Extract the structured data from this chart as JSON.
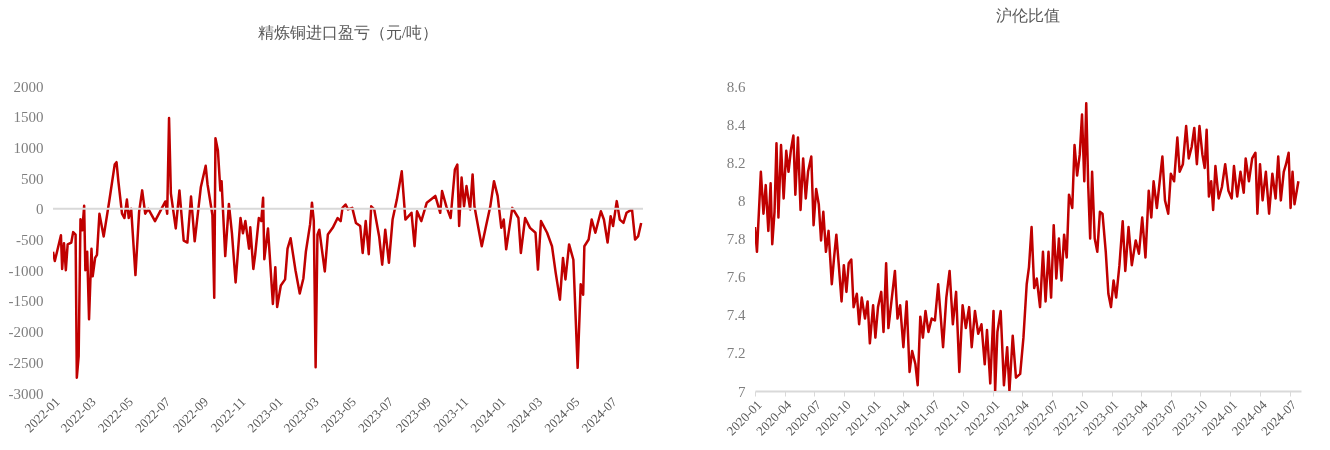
{
  "chart_data": [
    {
      "type": "line",
      "title": "精炼铜进口盈亏（元/吨）",
      "x": [
        "2022-01-01",
        "2022-01-04",
        "2022-01-14",
        "2022-01-16",
        "2022-01-19",
        "2022-01-22",
        "2022-01-25",
        "2022-01-31",
        "2022-02-03",
        "2022-02-07",
        "2022-02-09",
        "2022-02-12",
        "2022-02-15",
        "2022-02-18",
        "2022-02-21",
        "2022-02-23",
        "2022-02-26",
        "2022-03-01",
        "2022-03-05",
        "2022-03-07",
        "2022-03-11",
        "2022-03-14",
        "2022-03-18",
        "2022-03-25",
        "2022-04-03",
        "2022-04-12",
        "2022-04-15",
        "2022-04-18",
        "2022-04-24",
        "2022-04-28",
        "2022-05-02",
        "2022-05-05",
        "2022-05-09",
        "2022-05-16",
        "2022-05-22",
        "2022-05-27",
        "2022-06-01",
        "2022-06-06",
        "2022-06-17",
        "2022-06-25",
        "2022-07-04",
        "2022-07-07",
        "2022-07-10",
        "2022-07-13",
        "2022-07-21",
        "2022-07-27",
        "2022-08-03",
        "2022-08-09",
        "2022-08-15",
        "2022-08-21",
        "2022-08-31",
        "2022-09-08",
        "2022-09-11",
        "2022-09-19",
        "2022-09-22",
        "2022-09-24",
        "2022-09-28",
        "2022-10-02",
        "2022-10-04",
        "2022-10-10",
        "2022-10-16",
        "2022-10-21",
        "2022-10-27",
        "2022-11-04",
        "2022-11-08",
        "2022-11-12",
        "2022-11-18",
        "2022-11-20",
        "2022-11-25",
        "2022-11-28",
        "2022-12-04",
        "2022-12-08",
        "2022-12-11",
        "2022-12-13",
        "2022-12-19",
        "2022-12-27",
        "2022-12-31",
        "2023-01-03",
        "2023-01-09",
        "2023-01-16",
        "2023-01-20",
        "2023-01-25",
        "2023-02-02",
        "2023-02-09",
        "2023-02-15",
        "2023-02-19",
        "2023-02-26",
        "2023-03-01",
        "2023-03-04",
        "2023-03-07",
        "2023-03-10",
        "2023-03-13",
        "2023-03-22",
        "2023-03-27",
        "2023-04-04",
        "2023-04-12",
        "2023-04-17",
        "2023-04-20",
        "2023-04-25",
        "2023-04-29",
        "2023-05-06",
        "2023-05-12",
        "2023-05-19",
        "2023-05-23",
        "2023-05-28",
        "2023-06-02",
        "2023-06-06",
        "2023-06-11",
        "2023-06-19",
        "2023-06-24",
        "2023-06-29",
        "2023-07-05",
        "2023-07-11",
        "2023-07-18",
        "2023-07-26",
        "2023-08-01",
        "2023-08-11",
        "2023-08-16",
        "2023-08-20",
        "2023-08-27",
        "2023-09-05",
        "2023-09-19",
        "2023-09-27",
        "2023-09-30",
        "2023-10-07",
        "2023-10-14",
        "2023-10-21",
        "2023-10-25",
        "2023-10-28",
        "2023-11-01",
        "2023-11-05",
        "2023-11-09",
        "2023-11-15",
        "2023-11-19",
        "2023-11-22",
        "2023-11-29",
        "2023-12-04",
        "2023-12-11",
        "2023-12-18",
        "2023-12-24",
        "2023-12-30",
        "2024-01-05",
        "2024-01-09",
        "2024-01-13",
        "2024-01-23",
        "2024-02-02",
        "2024-02-06",
        "2024-02-13",
        "2024-02-21",
        "2024-03-01",
        "2024-03-05",
        "2024-03-10",
        "2024-03-20",
        "2024-03-28",
        "2024-04-03",
        "2024-04-10",
        "2024-04-15",
        "2024-04-19",
        "2024-04-25",
        "2024-05-02",
        "2024-05-09",
        "2024-05-14",
        "2024-05-18",
        "2024-05-20",
        "2024-05-27",
        "2024-06-01",
        "2024-06-07",
        "2024-06-16",
        "2024-06-21",
        "2024-06-27",
        "2024-07-02",
        "2024-07-06",
        "2024-07-12",
        "2024-07-17",
        "2024-07-23",
        "2024-07-28",
        "2024-08-06",
        "2024-08-11",
        "2024-08-16",
        "2024-08-21"
      ],
      "series": [
        {
          "color": "#c00000",
          "values": [
            -700,
            -850,
            -430,
            -980,
            -560,
            -1000,
            -580,
            -550,
            -380,
            -420,
            -2750,
            -2400,
            -170,
            -350,
            50,
            -1000,
            -700,
            -1800,
            -650,
            -1100,
            -800,
            -750,
            -80,
            -450,
            120,
            720,
            760,
            450,
            -80,
            -150,
            150,
            -150,
            0,
            -1080,
            -50,
            300,
            -80,
            0,
            -200,
            -50,
            120,
            -80,
            1480,
            250,
            -320,
            300,
            -520,
            -550,
            200,
            -530,
            350,
            700,
            400,
            -100,
            -1450,
            1150,
            950,
            300,
            450,
            -770,
            80,
            -400,
            -1200,
            -150,
            -400,
            -200,
            -650,
            -300,
            -980,
            -750,
            -150,
            -200,
            180,
            -820,
            -320,
            -1550,
            -950,
            -1600,
            -1250,
            -1150,
            -650,
            -480,
            -1000,
            -1380,
            -1130,
            -700,
            -250,
            100,
            -200,
            -2580,
            -420,
            -340,
            -1020,
            -420,
            -310,
            -150,
            -200,
            15,
            70,
            -10,
            15,
            -230,
            -280,
            -720,
            -200,
            -740,
            40,
            -10,
            -450,
            -910,
            -340,
            -880,
            -175,
            150,
            610,
            -175,
            -65,
            -610,
            -40,
            -200,
            100,
            210,
            -65,
            290,
            40,
            -150,
            640,
            720,
            -280,
            510,
            40,
            370,
            -10,
            560,
            40,
            -340,
            -610,
            -280,
            40,
            450,
            210,
            -310,
            -175,
            -660,
            15,
            -150,
            -720,
            -150,
            -310,
            -390,
            -990,
            -200,
            -390,
            -610,
            -1040,
            -1480,
            -800,
            -1150,
            -580,
            -830,
            -2590,
            -1230,
            -1400,
            -610,
            -500,
            -175,
            -390,
            -40,
            -175,
            -550,
            -120,
            -280,
            125,
            -175,
            -230,
            -65,
            -10,
            -500,
            -450,
            -230
          ]
        }
      ],
      "xlim": [
        "2022-01-01",
        "2024-08-24"
      ],
      "xticks": [
        "2022-01",
        "2022-03",
        "2022-05",
        "2022-07",
        "2022-09",
        "2022-11",
        "2023-01",
        "2023-03",
        "2023-05",
        "2023-07",
        "2023-09",
        "2023-11",
        "2024-01",
        "2024-03",
        "2024-05",
        "2024-07"
      ],
      "ylim": [
        -3000,
        2000
      ],
      "yticks": [
        -3000,
        -2500,
        -2000,
        -1500,
        -1000,
        -500,
        0,
        500,
        1000,
        1500,
        2000
      ],
      "ref_lines": [
        {
          "axis": "y",
          "value": 0,
          "color": "#d9d9d9"
        }
      ],
      "grid": false
    },
    {
      "type": "line",
      "title": "沪伦比值",
      "x": [
        "2020-01-01",
        "2020-01-07",
        "2020-01-19",
        "2020-01-27",
        "2020-02-03",
        "2020-02-11",
        "2020-02-18",
        "2020-02-23",
        "2020-03-01",
        "2020-03-07",
        "2020-03-13",
        "2020-03-21",
        "2020-03-29",
        "2020-04-06",
        "2020-04-13",
        "2020-04-20",
        "2020-04-28",
        "2020-05-04",
        "2020-05-12",
        "2020-05-20",
        "2020-05-28",
        "2020-06-05",
        "2020-06-12",
        "2020-06-22",
        "2020-06-29",
        "2020-07-07",
        "2020-07-15",
        "2020-07-22",
        "2020-07-29",
        "2020-08-06",
        "2020-08-14",
        "2020-08-24",
        "2020-08-31",
        "2020-09-07",
        "2020-09-15",
        "2020-09-23",
        "2020-09-30",
        "2020-10-08",
        "2020-10-15",
        "2020-10-23",
        "2020-10-30",
        "2020-11-09",
        "2020-11-16",
        "2020-11-24",
        "2020-12-04",
        "2020-12-12",
        "2020-12-19",
        "2020-12-29",
        "2021-01-05",
        "2021-01-13",
        "2021-01-23",
        "2021-01-30",
        "2021-02-07",
        "2021-02-14",
        "2021-02-22",
        "2021-03-06",
        "2021-03-14",
        "2021-03-22",
        "2021-04-01",
        "2021-04-11",
        "2021-04-20",
        "2021-04-28",
        "2021-05-08",
        "2021-05-15",
        "2021-05-23",
        "2021-05-31",
        "2021-06-08",
        "2021-06-17",
        "2021-06-27",
        "2021-07-07",
        "2021-07-17",
        "2021-08-01",
        "2021-08-11",
        "2021-08-21",
        "2021-08-31",
        "2021-09-10",
        "2021-09-20",
        "2021-09-30",
        "2021-10-10",
        "2021-10-20",
        "2021-10-28",
        "2021-11-07",
        "2021-11-17",
        "2021-11-27",
        "2021-12-07",
        "2021-12-14",
        "2021-12-24",
        "2022-01-03",
        "2022-01-08",
        "2022-01-15",
        "2022-01-25",
        "2022-02-04",
        "2022-02-14",
        "2022-02-21",
        "2022-03-03",
        "2022-03-13",
        "2022-03-26",
        "2022-04-05",
        "2022-04-15",
        "2022-04-22",
        "2022-04-30",
        "2022-05-08",
        "2022-05-16",
        "2022-05-26",
        "2022-06-04",
        "2022-06-12",
        "2022-06-21",
        "2022-06-29",
        "2022-07-07",
        "2022-07-15",
        "2022-07-23",
        "2022-07-31",
        "2022-08-08",
        "2022-08-16",
        "2022-08-23",
        "2022-09-02",
        "2022-09-09",
        "2022-09-17",
        "2022-09-25",
        "2022-10-02",
        "2022-10-09",
        "2022-10-15",
        "2022-10-21",
        "2022-10-27",
        "2022-11-02",
        "2022-11-10",
        "2022-11-18",
        "2022-11-26",
        "2022-12-04",
        "2022-12-14",
        "2022-12-22",
        "2022-12-30",
        "2023-01-07",
        "2023-01-15",
        "2023-01-25",
        "2023-02-04",
        "2023-02-12",
        "2023-02-22",
        "2023-03-04",
        "2023-03-16",
        "2023-03-26",
        "2023-04-05",
        "2023-04-15",
        "2023-04-25",
        "2023-05-03",
        "2023-05-10",
        "2023-05-20",
        "2023-05-30",
        "2023-06-06",
        "2023-06-14",
        "2023-06-24",
        "2023-07-02",
        "2023-07-12",
        "2023-07-22",
        "2023-07-29",
        "2023-08-08",
        "2023-08-18",
        "2023-08-26",
        "2023-09-04",
        "2023-09-12",
        "2023-09-20",
        "2023-09-28",
        "2023-10-07",
        "2023-10-14",
        "2023-10-20",
        "2023-10-27",
        "2023-11-03",
        "2023-11-09",
        "2023-11-16",
        "2023-11-26",
        "2023-12-06",
        "2023-12-16",
        "2023-12-26",
        "2024-01-05",
        "2024-01-12",
        "2024-01-22",
        "2024-02-01",
        "2024-02-11",
        "2024-02-17",
        "2024-02-27",
        "2024-03-08",
        "2024-03-18",
        "2024-03-24",
        "2024-04-01",
        "2024-04-09",
        "2024-04-19",
        "2024-04-29",
        "2024-05-09",
        "2024-05-19",
        "2024-05-27",
        "2024-06-04",
        "2024-06-13",
        "2024-06-20",
        "2024-06-28",
        "2024-07-04",
        "2024-07-10",
        "2024-07-16",
        "2024-07-28"
      ],
      "series": [
        {
          "color": "#c00000",
          "values": [
            7.86,
            7.73,
            8.15,
            7.93,
            8.08,
            7.84,
            8.09,
            7.77,
            7.94,
            8.3,
            7.91,
            8.29,
            8.01,
            8.26,
            8.15,
            8.26,
            8.34,
            8.03,
            8.33,
            7.95,
            8.22,
            8.01,
            8.15,
            8.23,
            7.87,
            8.06,
            7.98,
            7.79,
            7.94,
            7.73,
            7.84,
            7.56,
            7.7,
            7.82,
            7.65,
            7.47,
            7.66,
            7.52,
            7.67,
            7.69,
            7.44,
            7.51,
            7.35,
            7.49,
            7.38,
            7.47,
            7.25,
            7.45,
            7.28,
            7.44,
            7.52,
            7.31,
            7.67,
            7.33,
            7.45,
            7.63,
            7.38,
            7.45,
            7.23,
            7.47,
            7.1,
            7.21,
            7.14,
            7.03,
            7.39,
            7.28,
            7.42,
            7.31,
            7.38,
            7.37,
            7.56,
            7.23,
            7.49,
            7.63,
            7.35,
            7.52,
            7.1,
            7.45,
            7.33,
            7.44,
            7.23,
            7.42,
            7.3,
            7.35,
            7.14,
            7.32,
            7.04,
            7.42,
            7.0,
            7.31,
            7.42,
            7.03,
            7.23,
            7.0,
            7.29,
            7.07,
            7.09,
            7.28,
            7.56,
            7.65,
            7.86,
            7.54,
            7.59,
            7.44,
            7.73,
            7.47,
            7.73,
            7.49,
            7.87,
            7.59,
            7.8,
            7.58,
            7.82,
            7.7,
            8.03,
            7.96,
            8.29,
            8.13,
            8.24,
            8.45,
            8.1,
            8.51,
            8.08,
            7.8,
            8.15,
            7.8,
            7.73,
            7.94,
            7.93,
            7.73,
            7.51,
            7.44,
            7.58,
            7.49,
            7.66,
            7.89,
            7.63,
            7.86,
            7.66,
            7.79,
            7.72,
            7.91,
            7.7,
            8.05,
            7.91,
            8.1,
            7.96,
            8.12,
            8.23,
            8.0,
            7.93,
            8.14,
            8.1,
            8.33,
            8.15,
            8.19,
            8.39,
            8.22,
            8.28,
            8.38,
            8.19,
            8.39,
            8.24,
            8.17,
            8.37,
            8.02,
            8.1,
            7.95,
            8.18,
            8.01,
            8.07,
            8.19,
            8.05,
            8.01,
            8.18,
            8.02,
            8.15,
            8.04,
            8.22,
            8.1,
            8.22,
            8.25,
            7.93,
            8.19,
            8.0,
            8.15,
            7.93,
            8.14,
            8.01,
            8.23,
            8.0,
            8.15,
            8.19,
            8.25,
            7.96,
            8.15,
            7.98,
            8.1
          ]
        }
      ],
      "xlim": [
        "2020-01-01",
        "2024-08-05"
      ],
      "xticks": [
        "2020-01",
        "2020-04",
        "2020-07",
        "2020-10",
        "2021-01",
        "2021-04",
        "2021-07",
        "2021-10",
        "2022-01",
        "2022-04",
        "2022-07",
        "2022-10",
        "2023-01",
        "2023-04",
        "2023-07",
        "2023-10",
        "2024-01",
        "2024-04",
        "2024-07"
      ],
      "ylim": [
        7,
        8.6
      ],
      "yticks": [
        7,
        7.2,
        7.4,
        7.6,
        7.8,
        8,
        8.2,
        8.4,
        8.6
      ],
      "grid": false
    }
  ]
}
